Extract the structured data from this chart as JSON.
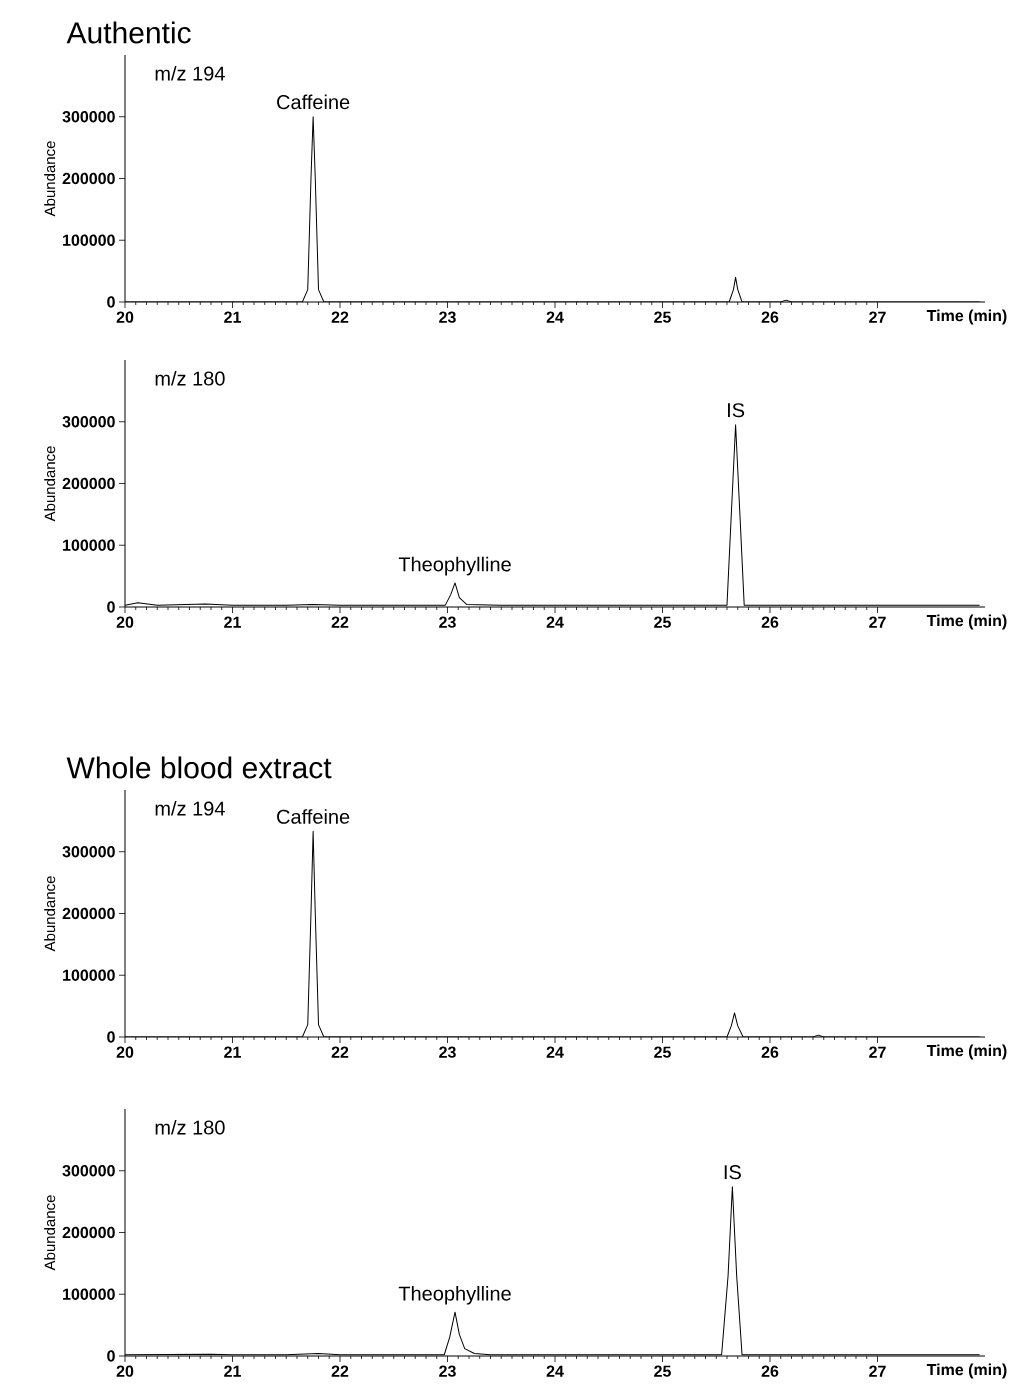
{
  "chart_data": [
    {
      "type": "line",
      "title": "Authentic",
      "xlabel": "Time (min)",
      "ylabel": "Abundance",
      "xlim": [
        20,
        28
      ],
      "xticks": [
        20,
        21,
        22,
        23,
        24,
        25,
        26,
        27
      ],
      "ylim": [
        0,
        400000
      ],
      "yticks": [
        0,
        100000,
        200000,
        300000
      ],
      "annotations": [
        "m/z 194",
        {
          "text": "Caffeine",
          "x": 21.75,
          "y": 300000
        }
      ],
      "series": [
        {
          "color": "#000000",
          "x": [
            20,
            20.5,
            21,
            21.5,
            21.65,
            21.7,
            21.73,
            21.75,
            21.77,
            21.8,
            21.85,
            22,
            22.5,
            23,
            23.5,
            24,
            24.5,
            25,
            25.5,
            25.62,
            25.66,
            25.68,
            25.7,
            25.74,
            25.8,
            26.1,
            26.15,
            26.2,
            26.5,
            27,
            27.5,
            27.95
          ],
          "values": [
            0,
            0,
            0,
            0,
            0,
            20000,
            200000,
            300000,
            200000,
            20000,
            0,
            0,
            0,
            0,
            0,
            0,
            0,
            0,
            0,
            0,
            20000,
            40000,
            20000,
            0,
            0,
            0,
            3000,
            0,
            0,
            0,
            0,
            0
          ]
        }
      ]
    },
    {
      "type": "line",
      "xlabel": "Time (min)",
      "ylabel": "Abundance",
      "xlim": [
        20,
        28
      ],
      "xticks": [
        20,
        21,
        22,
        23,
        24,
        25,
        26,
        27
      ],
      "ylim": [
        0,
        400000
      ],
      "yticks": [
        0,
        100000,
        200000,
        300000
      ],
      "annotations": [
        "m/z 180",
        {
          "text": "Theophylline",
          "x": 23.07,
          "y": 39000
        },
        {
          "text": "IS",
          "x": 25.68,
          "y": 295000
        }
      ],
      "series": [
        {
          "color": "#000000",
          "x": [
            20,
            20.12,
            20.3,
            20.75,
            21,
            21.5,
            21.75,
            22,
            22.5,
            22.98,
            23.03,
            23.07,
            23.11,
            23.18,
            23.5,
            24,
            24.5,
            25,
            25.5,
            25.6,
            25.64,
            25.68,
            25.72,
            25.76,
            26,
            26.5,
            27,
            27.5,
            27.95
          ],
          "values": [
            3000,
            7000,
            3000,
            5000,
            3000,
            3000,
            4000,
            3000,
            3000,
            3000,
            20000,
            39000,
            15000,
            4000,
            3000,
            3000,
            3000,
            3000,
            3000,
            3000,
            150000,
            295000,
            150000,
            3000,
            3000,
            3000,
            3000,
            3000,
            3000
          ]
        }
      ]
    },
    {
      "type": "line",
      "title": "Whole blood extract",
      "xlabel": "Time (min)",
      "ylabel": "Abundance",
      "xlim": [
        20,
        28
      ],
      "xticks": [
        20,
        21,
        22,
        23,
        24,
        25,
        26,
        27
      ],
      "ylim": [
        0,
        400000
      ],
      "yticks": [
        0,
        100000,
        200000,
        300000
      ],
      "annotations": [
        "m/z 194",
        {
          "text": "Caffeine",
          "x": 21.75,
          "y": 333000
        }
      ],
      "series": [
        {
          "color": "#000000",
          "x": [
            20,
            21,
            21.5,
            21.65,
            21.7,
            21.73,
            21.75,
            21.77,
            21.8,
            21.85,
            22,
            23,
            24,
            25,
            25.6,
            25.64,
            25.67,
            25.7,
            25.75,
            26,
            26.4,
            26.45,
            26.5,
            27,
            27.95
          ],
          "values": [
            0,
            0,
            0,
            0,
            20000,
            200000,
            333000,
            200000,
            20000,
            0,
            0,
            0,
            0,
            0,
            0,
            18000,
            39000,
            18000,
            0,
            0,
            0,
            3000,
            0,
            0,
            0
          ]
        }
      ]
    },
    {
      "type": "line",
      "xlabel": "Time (min)",
      "ylabel": "Abundance",
      "xlim": [
        20,
        28
      ],
      "xticks": [
        20,
        21,
        22,
        23,
        24,
        25,
        26,
        27
      ],
      "ylim": [
        0,
        400000
      ],
      "yticks": [
        0,
        100000,
        200000,
        300000
      ],
      "annotations": [
        "m/z 180",
        {
          "text": "Theophylline",
          "x": 23.07,
          "y": 71000
        },
        {
          "text": "IS",
          "x": 25.65,
          "y": 274000
        }
      ],
      "series": [
        {
          "color": "#000000",
          "x": [
            20,
            20.8,
            21,
            21.5,
            21.8,
            22,
            22.5,
            22.97,
            23.02,
            23.07,
            23.11,
            23.16,
            23.25,
            23.4,
            24,
            25,
            25.55,
            25.61,
            25.65,
            25.69,
            25.74,
            26,
            27,
            27.95
          ],
          "values": [
            2000,
            3000,
            2000,
            2000,
            4000,
            2000,
            2000,
            2000,
            30000,
            71000,
            35000,
            12000,
            4000,
            2000,
            2000,
            2000,
            2000,
            130000,
            274000,
            130000,
            2000,
            2000,
            2000,
            2000
          ]
        }
      ]
    }
  ]
}
